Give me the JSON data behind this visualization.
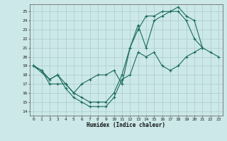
{
  "title": "",
  "xlabel": "Humidex (Indice chaleur)",
  "background_color": "#cce8e8",
  "grid_color": "#aacccc",
  "line_color": "#1a6b5a",
  "xlim": [
    -0.5,
    23.5
  ],
  "ylim": [
    13.5,
    25.8
  ],
  "yticks": [
    14,
    15,
    16,
    17,
    18,
    19,
    20,
    21,
    22,
    23,
    24,
    25
  ],
  "xticks": [
    0,
    1,
    2,
    3,
    4,
    5,
    6,
    7,
    8,
    9,
    10,
    11,
    12,
    13,
    14,
    15,
    16,
    17,
    18,
    19,
    20,
    21,
    22,
    23
  ],
  "line1_x": [
    0,
    1,
    2,
    3,
    4,
    5,
    6,
    7,
    8,
    9,
    10,
    11,
    12,
    13,
    14,
    15,
    16,
    17,
    18,
    19,
    20,
    21,
    22,
    23
  ],
  "line1_y": [
    19.0,
    18.5,
    17.5,
    18.0,
    16.5,
    15.5,
    15.0,
    14.5,
    14.5,
    14.5,
    15.5,
    17.5,
    18.0,
    20.5,
    20.0,
    20.5,
    19.0,
    18.5,
    19.0,
    20.0,
    20.5,
    21.0,
    20.5,
    20.0
  ],
  "line2_x": [
    0,
    1,
    2,
    3,
    4,
    5,
    6,
    7,
    8,
    9,
    10,
    11,
    12,
    13,
    14,
    15,
    16,
    17,
    18,
    19,
    20,
    21
  ],
  "line2_y": [
    19.0,
    18.5,
    17.0,
    17.0,
    17.0,
    16.0,
    17.0,
    17.5,
    18.0,
    18.0,
    18.5,
    17.0,
    21.0,
    23.0,
    24.5,
    24.5,
    25.0,
    25.0,
    25.0,
    24.0,
    22.0,
    21.0
  ],
  "line3_x": [
    0,
    2,
    3,
    4,
    5,
    6,
    7,
    8,
    9,
    10,
    11,
    12,
    13,
    14,
    15,
    16,
    17,
    18,
    19,
    20,
    21
  ],
  "line3_y": [
    19.0,
    17.5,
    18.0,
    17.0,
    16.0,
    15.5,
    15.0,
    15.0,
    15.0,
    16.0,
    18.0,
    21.0,
    23.5,
    21.0,
    24.0,
    24.5,
    25.0,
    25.5,
    24.5,
    24.0,
    21.0
  ]
}
